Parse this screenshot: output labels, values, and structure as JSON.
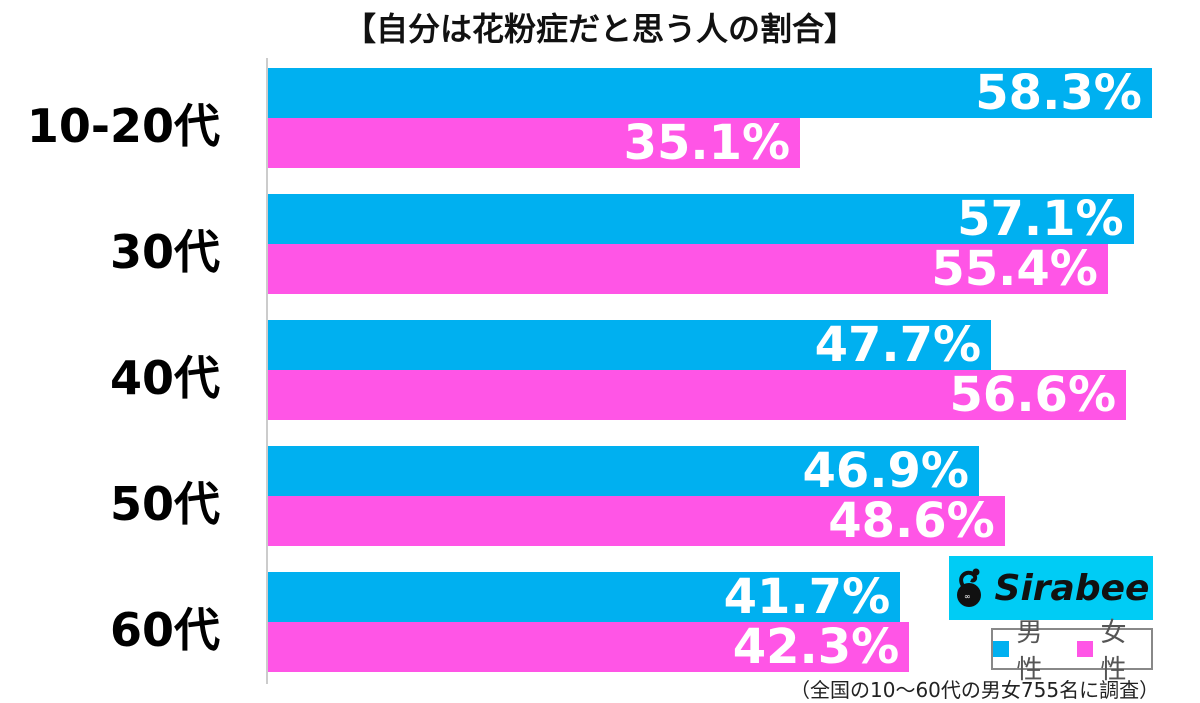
{
  "chart_data": {
    "type": "bar",
    "orientation": "horizontal",
    "title": "【自分は花粉症だと思う人の割合】",
    "categories": [
      "10-20代",
      "30代",
      "40代",
      "50代",
      "60代"
    ],
    "series": [
      {
        "name": "男性",
        "color": "#00b0f0",
        "values": [
          58.3,
          57.1,
          47.7,
          46.9,
          41.7
        ]
      },
      {
        "name": "女性",
        "color": "#ff55e6",
        "values": [
          35.1,
          55.4,
          56.6,
          48.6,
          42.3
        ]
      }
    ],
    "value_labels": {
      "male": [
        "58.3%",
        "57.1%",
        "47.7%",
        "46.9%",
        "41.7%"
      ],
      "female": [
        "35.1%",
        "55.4%",
        "56.6%",
        "48.6%",
        "42.3%"
      ]
    },
    "xlabel": "",
    "ylabel": "",
    "grid": false,
    "legend_position": "bottom-right",
    "unit": "%"
  },
  "legend": {
    "male": "男性",
    "female": "女性"
  },
  "logo": {
    "text": "Sirabee"
  },
  "note": "（全国の10〜60代の男女755名に調査）",
  "colors": {
    "male": "#00b0f0",
    "female": "#ff55e6",
    "logo_bg": "#00ccf5"
  }
}
